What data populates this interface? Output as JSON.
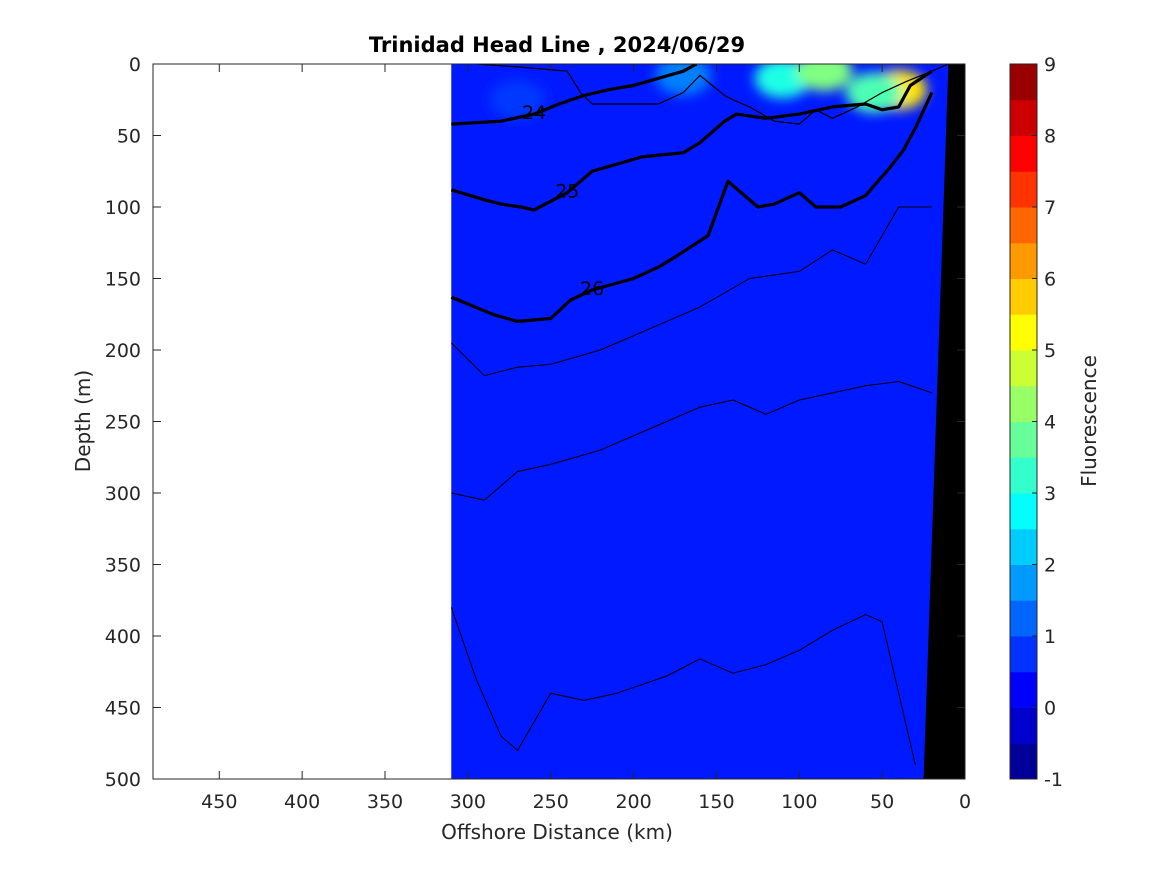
{
  "chart_data": {
    "type": "heatmap",
    "title": "Trinidad Head Line , 2024/06/29",
    "xlabel": "Offshore Distance (km)",
    "ylabel": "Depth (m)",
    "xlim": [
      490,
      0
    ],
    "ylim": [
      0,
      500
    ],
    "x_reversed": true,
    "y_reversed": true,
    "x_ticks": [
      450,
      400,
      350,
      300,
      250,
      200,
      150,
      100,
      50,
      0
    ],
    "y_ticks": [
      0,
      50,
      100,
      150,
      200,
      250,
      300,
      350,
      400,
      450,
      500
    ],
    "colorbar": {
      "label": "Fluorescence",
      "range": [
        -1,
        9
      ],
      "step": 0.5,
      "ticks": [
        -1,
        0,
        1,
        2,
        3,
        4,
        5,
        6,
        7,
        8,
        9
      ],
      "colormap": "jet"
    },
    "data_extent_km": [
      0,
      310
    ],
    "background_fluorescence": 0.5,
    "fluorescence_features": [
      {
        "x": 110,
        "y": 10,
        "value": 3.0
      },
      {
        "x": 85,
        "y": 5,
        "value": 4.0
      },
      {
        "x": 40,
        "y": 18,
        "value": 5.5
      },
      {
        "x": 55,
        "y": 20,
        "value": 3.5
      },
      {
        "x": 170,
        "y": 8,
        "value": 1.5
      },
      {
        "x": 270,
        "y": 25,
        "value": 0.8
      }
    ],
    "density_contours": [
      {
        "level": "24",
        "x": [
          310,
          280,
          260,
          245,
          230,
          215,
          200,
          185,
          170,
          162
        ],
        "y": [
          42,
          40,
          35,
          28,
          22,
          18,
          15,
          10,
          5,
          0
        ]
      },
      {
        "level": "",
        "x": [
          295,
          270,
          240,
          232,
          225,
          185,
          170,
          160,
          145,
          140,
          130,
          115,
          100,
          90,
          80,
          65,
          50,
          35,
          20,
          10
        ],
        "y": [
          0,
          2,
          5,
          20,
          28,
          28,
          20,
          8,
          22,
          25,
          30,
          40,
          42,
          32,
          38,
          30,
          20,
          12,
          5,
          0
        ]
      },
      {
        "level": "25",
        "x": [
          310,
          290,
          280,
          268,
          260,
          240,
          225,
          195,
          170,
          160,
          145,
          138,
          120,
          100,
          80,
          60,
          50,
          40,
          33,
          20
        ],
        "y": [
          88,
          95,
          98,
          100,
          102,
          90,
          75,
          65,
          62,
          55,
          40,
          35,
          38,
          35,
          30,
          28,
          32,
          30,
          15,
          5
        ]
      },
      {
        "level": "26",
        "x": [
          310,
          285,
          270,
          250,
          238,
          225,
          200,
          185,
          175,
          155,
          143,
          125,
          115,
          100,
          90,
          75,
          60,
          45,
          37,
          30,
          20
        ],
        "y": [
          163,
          175,
          180,
          178,
          165,
          158,
          150,
          142,
          135,
          120,
          82,
          100,
          98,
          90,
          100,
          100,
          92,
          72,
          60,
          45,
          20
        ]
      }
    ],
    "thin_contours": [
      {
        "x": [
          310,
          290,
          270,
          250,
          220,
          190,
          160,
          130,
          100,
          80,
          60,
          40,
          20
        ],
        "y": [
          195,
          218,
          212,
          210,
          200,
          185,
          170,
          150,
          145,
          130,
          140,
          100,
          100
        ]
      },
      {
        "x": [
          310,
          290,
          270,
          250,
          220,
          200,
          180,
          160,
          140,
          120,
          100,
          80,
          60,
          40,
          20
        ],
        "y": [
          300,
          305,
          285,
          280,
          270,
          260,
          250,
          240,
          235,
          245,
          235,
          230,
          225,
          222,
          230
        ]
      },
      {
        "x": [
          310,
          295,
          280,
          270,
          250,
          230,
          210,
          180,
          160,
          140,
          120,
          100,
          80,
          60,
          50,
          40,
          30
        ],
        "y": [
          380,
          430,
          470,
          480,
          440,
          445,
          440,
          428,
          416,
          426,
          420,
          410,
          396,
          385,
          390,
          440,
          490
        ]
      }
    ],
    "bathymetry": {
      "x": [
        10,
        10,
        27,
        27
      ],
      "y": [
        0,
        500,
        500,
        500
      ],
      "shelf_x": [
        10,
        25
      ],
      "shelf_y": [
        0,
        500
      ]
    }
  }
}
